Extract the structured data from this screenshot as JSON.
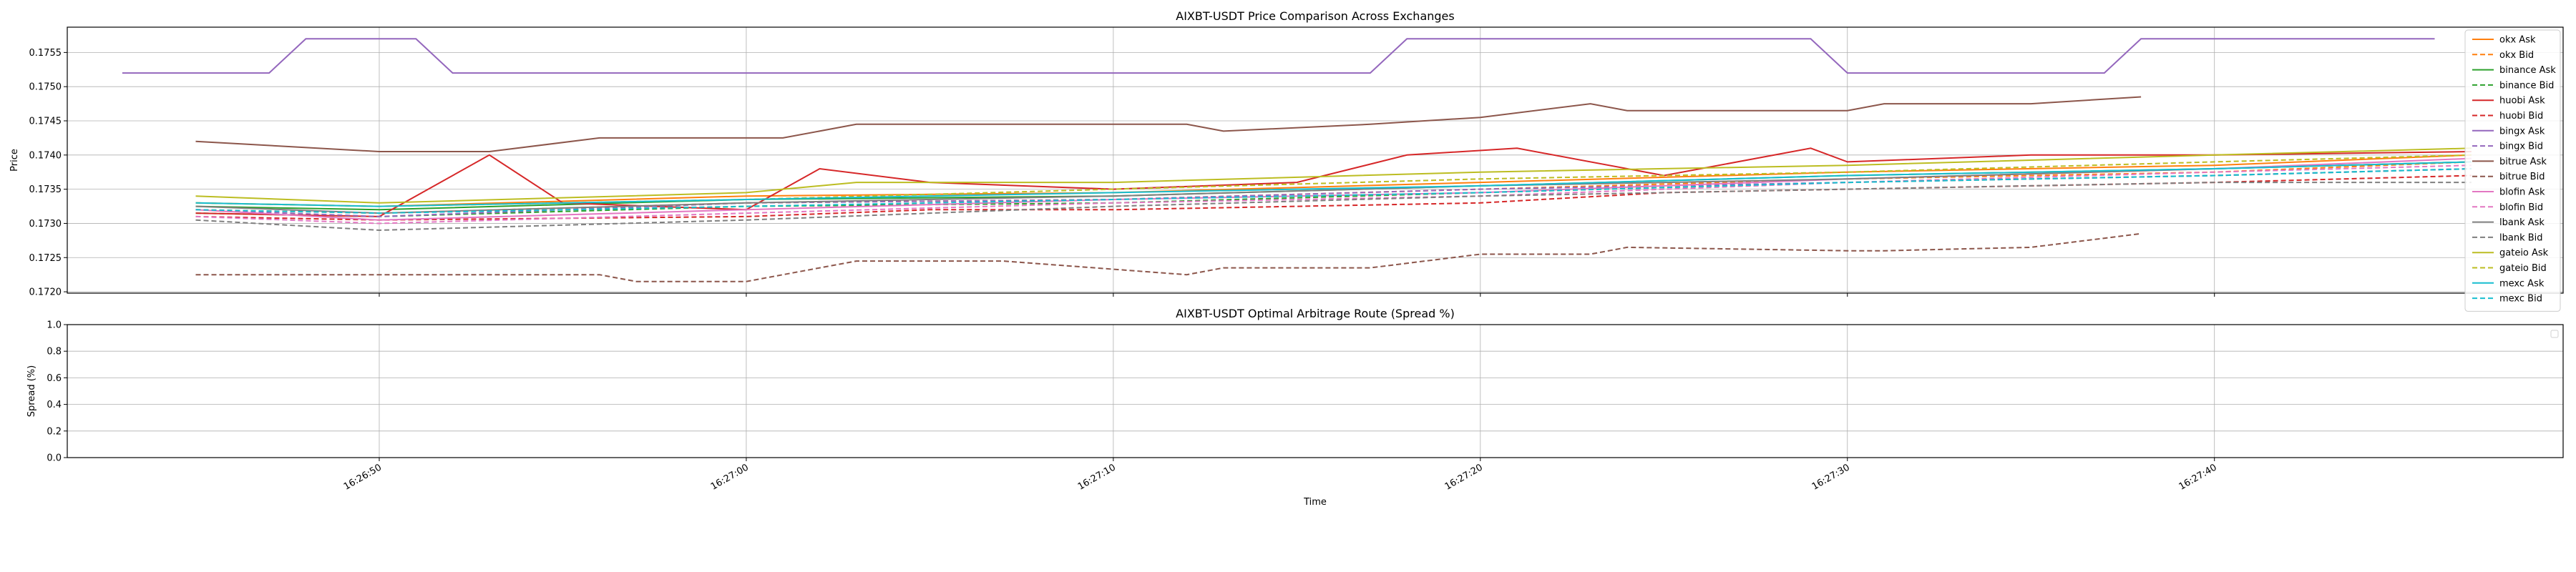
{
  "chart_data": [
    {
      "type": "line",
      "title": "AIXBT-USDT Price Comparison Across Exchanges",
      "xlabel": "",
      "ylabel": "Price",
      "x_unit": "time (HH:MM:SS)",
      "xlim": [
        "16:26:41.5",
        "16:27:49.5"
      ],
      "ylim": [
        0.17198,
        0.17587
      ],
      "yticks": [
        "0.1720",
        "0.1725",
        "0.1730",
        "0.1735",
        "0.1740",
        "0.1745",
        "0.1750",
        "0.1755"
      ],
      "grid": true,
      "legend_position": "right",
      "series": [
        {
          "name": "okx Ask",
          "color": "#ff7f0e",
          "dash": "solid",
          "x": [
            "16:26:45",
            "16:26:50",
            "16:27:00",
            "16:27:10",
            "16:27:20",
            "16:27:30",
            "16:27:40",
            "16:27:47"
          ],
          "y": [
            0.1733,
            0.17325,
            0.1734,
            0.17345,
            0.1736,
            0.17375,
            0.17385,
            0.174
          ]
        },
        {
          "name": "okx Bid",
          "color": "#ff7f0e",
          "dash": "dashed",
          "x": [
            "16:26:45",
            "16:26:50",
            "16:27:00",
            "16:27:10",
            "16:27:20",
            "16:27:30",
            "16:27:40",
            "16:27:47"
          ],
          "y": [
            0.1732,
            0.17315,
            0.1733,
            0.17335,
            0.1735,
            0.17365,
            0.17375,
            0.1739
          ]
        },
        {
          "name": "binance Ask",
          "color": "#2ca02c",
          "dash": "solid",
          "x": [
            "16:26:45",
            "16:26:50",
            "16:27:00",
            "16:27:10",
            "16:27:20",
            "16:27:30",
            "16:27:40",
            "16:27:47"
          ],
          "y": [
            0.17325,
            0.1732,
            0.17335,
            0.1734,
            0.17355,
            0.1737,
            0.1738,
            0.1739
          ]
        },
        {
          "name": "binance Bid",
          "color": "#2ca02c",
          "dash": "dashed",
          "x": [
            "16:26:45",
            "16:26:50",
            "16:27:00",
            "16:27:10",
            "16:27:20",
            "16:27:30",
            "16:27:40",
            "16:27:47"
          ],
          "y": [
            0.17315,
            0.1731,
            0.17325,
            0.1733,
            0.17345,
            0.1736,
            0.1737,
            0.1738
          ]
        },
        {
          "name": "huobi Ask",
          "color": "#d62728",
          "dash": "solid",
          "x": [
            "16:26:45",
            "16:26:50",
            "16:26:53",
            "16:26:55",
            "16:27:00",
            "16:27:02",
            "16:27:05",
            "16:27:10",
            "16:27:15",
            "16:27:18",
            "16:27:21",
            "16:27:25",
            "16:27:29",
            "16:27:30",
            "16:27:35",
            "16:27:40",
            "16:27:47"
          ],
          "y": [
            0.17315,
            0.1731,
            0.174,
            0.1733,
            0.1732,
            0.1738,
            0.1736,
            0.1735,
            0.1736,
            0.174,
            0.1741,
            0.1737,
            0.1741,
            0.1739,
            0.174,
            0.174,
            0.17405
          ]
        },
        {
          "name": "huobi Bid",
          "color": "#d62728",
          "dash": "dashed",
          "x": [
            "16:26:45",
            "16:26:50",
            "16:27:00",
            "16:27:05",
            "16:27:10",
            "16:27:15",
            "16:27:20",
            "16:27:25",
            "16:27:30",
            "16:27:35",
            "16:27:40",
            "16:27:47"
          ],
          "y": [
            0.1731,
            0.17305,
            0.1731,
            0.1732,
            0.1732,
            0.17325,
            0.1733,
            0.17345,
            0.1735,
            0.17355,
            0.1736,
            0.1737
          ]
        },
        {
          "name": "bingx Ask",
          "color": "#9467bd",
          "dash": "solid",
          "x": [
            "16:26:43",
            "16:26:47",
            "16:26:48",
            "16:26:51",
            "16:26:52",
            "16:27:17",
            "16:27:18",
            "16:27:29",
            "16:27:30",
            "16:27:37",
            "16:27:38",
            "16:27:46"
          ],
          "y": [
            0.1752,
            0.1752,
            0.1757,
            0.1757,
            0.1752,
            0.1752,
            0.1757,
            0.1757,
            0.1752,
            0.1752,
            0.1757,
            0.1757
          ]
        },
        {
          "name": "bingx Bid",
          "color": "#9467bd",
          "dash": "dashed",
          "x": [
            "16:26:45",
            "16:26:50",
            "16:27:00",
            "16:27:10",
            "16:27:20",
            "16:27:30",
            "16:27:40",
            "16:27:47"
          ],
          "y": [
            0.1732,
            0.1731,
            0.1733,
            0.17335,
            0.1735,
            0.1736,
            0.1737,
            0.1738
          ]
        },
        {
          "name": "bitrue Ask",
          "color": "#8c564b",
          "dash": "solid",
          "x": [
            "16:26:45",
            "16:26:50",
            "16:26:53",
            "16:26:56",
            "16:27:01",
            "16:27:03",
            "16:27:08",
            "16:27:12",
            "16:27:13",
            "16:27:17",
            "16:27:20",
            "16:27:23",
            "16:27:24",
            "16:27:30",
            "16:27:31",
            "16:27:35",
            "16:27:38"
          ],
          "y": [
            0.1742,
            0.17405,
            0.17405,
            0.17425,
            0.17425,
            0.17445,
            0.17445,
            0.17445,
            0.17435,
            0.17445,
            0.17455,
            0.17475,
            0.17465,
            0.17465,
            0.17475,
            0.17475,
            0.17485
          ]
        },
        {
          "name": "bitrue Bid",
          "color": "#8c564b",
          "dash": "dashed",
          "x": [
            "16:26:45",
            "16:26:50",
            "16:26:56",
            "16:26:57",
            "16:27:00",
            "16:27:03",
            "16:27:07",
            "16:27:12",
            "16:27:13",
            "16:27:17",
            "16:27:20",
            "16:27:23",
            "16:27:24",
            "16:27:30",
            "16:27:31",
            "16:27:35",
            "16:27:38"
          ],
          "y": [
            0.17225,
            0.17225,
            0.17225,
            0.17215,
            0.17215,
            0.17245,
            0.17245,
            0.17225,
            0.17235,
            0.17235,
            0.17255,
            0.17255,
            0.17265,
            0.1726,
            0.1726,
            0.17265,
            0.17285
          ]
        },
        {
          "name": "blofin Ask",
          "color": "#e377c2",
          "dash": "solid",
          "x": [
            "16:26:45",
            "16:26:50",
            "16:27:00",
            "16:27:10",
            "16:27:20",
            "16:27:30",
            "16:27:40",
            "16:27:47"
          ],
          "y": [
            0.1732,
            0.17305,
            0.1732,
            0.17335,
            0.17345,
            0.17365,
            0.1738,
            0.17395
          ]
        },
        {
          "name": "blofin Bid",
          "color": "#e377c2",
          "dash": "dashed",
          "x": [
            "16:26:45",
            "16:26:50",
            "16:27:00",
            "16:27:10",
            "16:27:20",
            "16:27:30",
            "16:27:40",
            "16:27:47"
          ],
          "y": [
            0.1731,
            0.173,
            0.17315,
            0.1733,
            0.1734,
            0.1736,
            0.17375,
            0.17385
          ]
        },
        {
          "name": "lbank Ask",
          "color": "#7f7f7f",
          "dash": "solid",
          "x": [
            "16:26:45",
            "16:26:50",
            "16:27:00",
            "16:27:10",
            "16:27:20",
            "16:27:30",
            "16:27:40",
            "16:27:47"
          ],
          "y": [
            0.17325,
            0.17315,
            0.1733,
            0.1734,
            0.17355,
            0.17365,
            0.1738,
            0.1739
          ]
        },
        {
          "name": "lbank Bid",
          "color": "#7f7f7f",
          "dash": "dashed",
          "x": [
            "16:26:45",
            "16:26:50",
            "16:27:00",
            "16:27:10",
            "16:27:20",
            "16:27:30",
            "16:27:40",
            "16:27:47"
          ],
          "y": [
            0.17305,
            0.1729,
            0.17305,
            0.17325,
            0.1734,
            0.1735,
            0.1736,
            0.1736
          ]
        },
        {
          "name": "gateio Ask",
          "color": "#bcbd22",
          "dash": "solid",
          "x": [
            "16:26:45",
            "16:26:50",
            "16:27:00",
            "16:27:03",
            "16:27:10",
            "16:27:20",
            "16:27:30",
            "16:27:40",
            "16:27:47"
          ],
          "y": [
            0.1734,
            0.1733,
            0.17345,
            0.1736,
            0.1736,
            0.17375,
            0.17385,
            0.174,
            0.1741
          ]
        },
        {
          "name": "gateio Bid",
          "color": "#bcbd22",
          "dash": "dashed",
          "x": [
            "16:26:45",
            "16:26:50",
            "16:27:00",
            "16:27:10",
            "16:27:20",
            "16:27:30",
            "16:27:40",
            "16:27:47"
          ],
          "y": [
            0.1733,
            0.17325,
            0.17335,
            0.1735,
            0.17365,
            0.17375,
            0.1739,
            0.174
          ]
        },
        {
          "name": "mexc Ask",
          "color": "#17becf",
          "dash": "solid",
          "x": [
            "16:26:45",
            "16:26:50",
            "16:27:00",
            "16:27:10",
            "16:27:20",
            "16:27:30",
            "16:27:40",
            "16:27:47"
          ],
          "y": [
            0.1733,
            0.17325,
            0.17335,
            0.17345,
            0.17355,
            0.1737,
            0.1738,
            0.1739
          ]
        },
        {
          "name": "mexc Bid",
          "color": "#17becf",
          "dash": "dashed",
          "x": [
            "16:26:45",
            "16:26:50",
            "16:27:00",
            "16:27:10",
            "16:27:20",
            "16:27:30",
            "16:27:40",
            "16:27:47"
          ],
          "y": [
            0.1732,
            0.17315,
            0.17325,
            0.17335,
            0.17345,
            0.1736,
            0.1737,
            0.1738
          ]
        }
      ]
    },
    {
      "type": "line",
      "title": "AIXBT-USDT Optimal Arbitrage Route (Spread %)",
      "xlabel": "Time",
      "ylabel": "Spread (%)",
      "xlim": [
        "16:26:41.5",
        "16:27:49.5"
      ],
      "ylim": [
        0.0,
        1.0
      ],
      "yticks": [
        "0.0",
        "0.2",
        "0.4",
        "0.6",
        "0.8",
        "1.0"
      ],
      "xticks": [
        "16:26:50",
        "16:27:00",
        "16:27:10",
        "16:27:20",
        "16:27:30",
        "16:27:40"
      ],
      "grid": true,
      "series": []
    }
  ]
}
